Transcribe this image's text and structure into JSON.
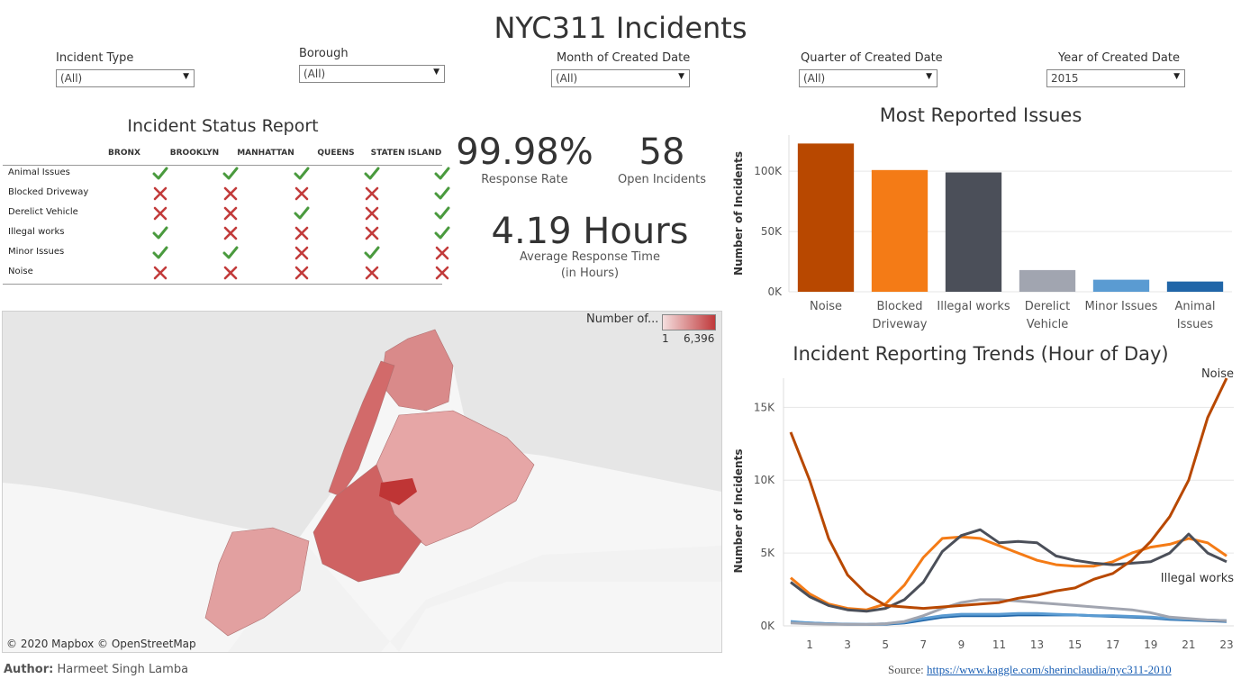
{
  "title": "NYC311 Incidents",
  "filters": [
    {
      "label": "Incident Type",
      "value": "(All)"
    },
    {
      "label": "Borough",
      "value": "(All)"
    },
    {
      "label": "Month of Created Date",
      "value": "(All)"
    },
    {
      "label": "Quarter of Created Date",
      "value": "(All)"
    },
    {
      "label": "Year of Created Date",
      "value": "2015"
    }
  ],
  "status_report": {
    "title": "Incident Status Report",
    "columns": [
      "BRONX",
      "BROOKLYN",
      "MANHATTAN",
      "QUEENS",
      "STATEN ISLAND"
    ],
    "rows": [
      {
        "label": "Animal Issues",
        "status": [
          1,
          1,
          1,
          1,
          1
        ]
      },
      {
        "label": "Blocked Driveway",
        "status": [
          0,
          0,
          0,
          0,
          1
        ]
      },
      {
        "label": "Derelict Vehicle",
        "status": [
          0,
          0,
          1,
          0,
          1
        ]
      },
      {
        "label": "Illegal works",
        "status": [
          1,
          0,
          0,
          0,
          1
        ]
      },
      {
        "label": "Minor Issues",
        "status": [
          1,
          1,
          0,
          1,
          0
        ]
      },
      {
        "label": "Noise",
        "status": [
          0,
          0,
          0,
          0,
          0
        ]
      }
    ],
    "colors": {
      "check": "#4a9a3e",
      "cross": "#c23b3b"
    }
  },
  "kpis": {
    "response_rate": {
      "value": "99.98%",
      "label": "Response Rate"
    },
    "open_incidents": {
      "value": "58",
      "label": "Open Incidents"
    },
    "avg_response": {
      "value": "4.19 Hours",
      "label_line1": "Average Response Time",
      "label_line2": "(in Hours)"
    }
  },
  "map": {
    "legend_title": "Number of...",
    "legend_min": "1",
    "legend_max": "6,396",
    "attribution": "© 2020 Mapbox  © OpenStreetMap",
    "colors": {
      "low": "#f4dede",
      "high": "#c0393b"
    }
  },
  "chart_data": [
    {
      "type": "bar",
      "title": "Most Reported Issues",
      "ylabel": "Number of Incidents",
      "categories": [
        "Noise",
        "Blocked Driveway",
        "Illegal works",
        "Derelict Vehicle",
        "Minor Issues",
        "Animal Issues"
      ],
      "category_lines": [
        [
          "Noise"
        ],
        [
          "Blocked",
          "Driveway"
        ],
        [
          "Illegal works"
        ],
        [
          "Derelict",
          "Vehicle"
        ],
        [
          "Minor Issues"
        ],
        [
          "Animal",
          "Issues"
        ]
      ],
      "values": [
        123000,
        101000,
        99000,
        18000,
        10000,
        8500
      ],
      "colors": [
        "#b84800",
        "#f47b16",
        "#4b4f59",
        "#a1a5b0",
        "#5a9bd2",
        "#2166a8"
      ],
      "ylim": [
        0,
        130000
      ],
      "yticks": [
        0,
        50000,
        100000
      ],
      "ytick_labels": [
        "0K",
        "50K",
        "100K"
      ],
      "grid": true
    },
    {
      "type": "line",
      "title": "Incident Reporting Trends (Hour of Day)",
      "ylabel": "Number of Incidents",
      "x": [
        0,
        1,
        2,
        3,
        4,
        5,
        6,
        7,
        8,
        9,
        10,
        11,
        12,
        13,
        14,
        15,
        16,
        17,
        18,
        19,
        20,
        21,
        22,
        23
      ],
      "xticks": [
        1,
        3,
        5,
        7,
        9,
        11,
        13,
        15,
        17,
        19,
        21,
        23
      ],
      "ylim": [
        0,
        17000
      ],
      "yticks": [
        0,
        5000,
        10000,
        15000
      ],
      "ytick_labels": [
        "0K",
        "5K",
        "10K",
        "15K"
      ],
      "grid": true,
      "series": [
        {
          "name": "Noise",
          "color": "#b84800",
          "labeled": true,
          "values": [
            13300,
            10000,
            6000,
            3500,
            2200,
            1400,
            1300,
            1200,
            1300,
            1400,
            1500,
            1600,
            1900,
            2100,
            2400,
            2600,
            3200,
            3600,
            4500,
            5800,
            7500,
            10000,
            14300,
            17000
          ]
        },
        {
          "name": "Illegal works",
          "color": "#4b4f59",
          "labeled": true,
          "values": [
            3000,
            2000,
            1400,
            1100,
            1000,
            1200,
            1800,
            3000,
            5100,
            6200,
            6600,
            5700,
            5800,
            5700,
            4800,
            4500,
            4300,
            4200,
            4300,
            4400,
            5000,
            6300,
            5000,
            4400
          ]
        },
        {
          "color": "#f47b16",
          "labeled": false,
          "values": [
            3300,
            2200,
            1500,
            1200,
            1100,
            1500,
            2800,
            4700,
            6000,
            6100,
            6000,
            5500,
            5000,
            4500,
            4200,
            4100,
            4100,
            4400,
            5000,
            5400,
            5600,
            6000,
            5700,
            4800
          ]
        },
        {
          "color": "#a1a5b0",
          "labeled": false,
          "values": [
            200,
            150,
            120,
            100,
            100,
            150,
            300,
            700,
            1200,
            1600,
            1800,
            1800,
            1700,
            1600,
            1500,
            1400,
            1300,
            1200,
            1100,
            900,
            600,
            500,
            400,
            350
          ]
        },
        {
          "color": "#5a9bd2",
          "labeled": false,
          "values": [
            300,
            200,
            150,
            100,
            100,
            150,
            250,
            500,
            700,
            800,
            800,
            800,
            850,
            850,
            800,
            750,
            700,
            700,
            650,
            600,
            500,
            450,
            400,
            350
          ]
        },
        {
          "color": "#2166a8",
          "labeled": false,
          "values": [
            250,
            200,
            150,
            120,
            100,
            120,
            200,
            400,
            600,
            700,
            700,
            700,
            750,
            750,
            750,
            750,
            700,
            650,
            600,
            550,
            450,
            400,
            350,
            300
          ]
        }
      ]
    }
  ],
  "footer": {
    "author_prefix": "Author:",
    "author_name": "Harmeet Singh Lamba",
    "source_prefix": "Source:",
    "source_link": "https://www.kaggle.com/sherinclaudia/nyc311-2010"
  }
}
